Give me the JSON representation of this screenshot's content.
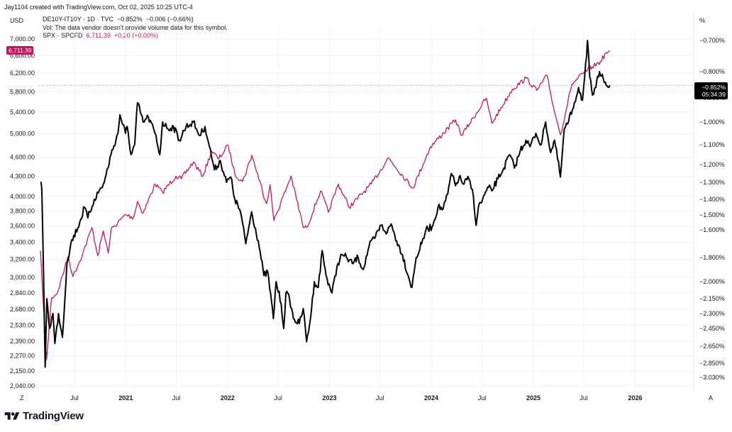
{
  "header": {
    "credit": "Jay1104 created with TradingView.com, Oct 02, 2025 10:25 UTC-4",
    "left_unit": "USD",
    "right_unit": "%"
  },
  "legend": {
    "line1_symbol": "DE10Y-IT10Y · 1D · TVC",
    "line1_value": "−0.852%",
    "line1_change": "−0.006 (−0.66%)",
    "line2": "Vol: The data vendor doesn't provide volume data for this symbol.",
    "line3_symbol": "SPX · SPCFD",
    "line3_value": "6,711.39",
    "line3_change": "+0.20 (+0.00%)"
  },
  "badges": {
    "spx_last": "6,711.39",
    "de_last": "−0.852%",
    "countdown": "05:34:39"
  },
  "corner_labels": {
    "bottom_left": "Z",
    "bottom_right": "A"
  },
  "footer": {
    "brand": "TradingView"
  },
  "colors": {
    "spx": "#c2185b",
    "spread": "#000000",
    "grid": "#f0f3fa",
    "text": "#131722"
  },
  "chart_data": {
    "type": "line",
    "x_ticks": [
      "Jul",
      "2021",
      "Jul",
      "2022",
      "Jul",
      "2023",
      "Jul",
      "2024",
      "Jul",
      "2025",
      "Jul",
      "2026"
    ],
    "left_axis": {
      "scale": "log",
      "ticks": [
        "7,000.00",
        "6,600.00",
        "6,200.00",
        "5,800.00",
        "5,400.00",
        "5,000.00",
        "4,600.00",
        "4,300.00",
        "4,000.00",
        "3,800.00",
        "3,600.00",
        "3,400.00",
        "3,200.00",
        "3,000.00",
        "2,840.00",
        "2,680.00",
        "2,530.00",
        "2,390.00",
        "2,270.00",
        "2,150.00",
        "2,040.00"
      ]
    },
    "right_axis": {
      "ticks": [
        "−0.700%",
        "−0.800%",
        "−0.900%",
        "−1.000%",
        "−1.100%",
        "−1.200%",
        "−1.300%",
        "−1.400%",
        "−1.500%",
        "−1.600%",
        "−1.800%",
        "−2.000%",
        "−2.150%",
        "−2.300%",
        "−2.450%",
        "−2.650%",
        "−2.850%",
        "−3.030%"
      ]
    },
    "last_value_line": -0.852,
    "series": [
      {
        "name": "SPX · SPCFD",
        "axis": "left",
        "color": "#c2185b",
        "points": [
          [
            "2020-03-01",
            3300
          ],
          [
            "2020-03-12",
            2700
          ],
          [
            "2020-03-23",
            2240
          ],
          [
            "2020-04-10",
            2790
          ],
          [
            "2020-05-01",
            2840
          ],
          [
            "2020-06-08",
            3230
          ],
          [
            "2020-06-26",
            3010
          ],
          [
            "2020-07-31",
            3270
          ],
          [
            "2020-09-02",
            3580
          ],
          [
            "2020-09-23",
            3240
          ],
          [
            "2020-10-12",
            3540
          ],
          [
            "2020-10-30",
            3270
          ],
          [
            "2020-11-09",
            3550
          ],
          [
            "2020-12-31",
            3750
          ],
          [
            "2021-01-29",
            3710
          ],
          [
            "2021-02-12",
            3930
          ],
          [
            "2021-03-04",
            3770
          ],
          [
            "2021-04-16",
            4180
          ],
          [
            "2021-05-12",
            4060
          ],
          [
            "2021-06-30",
            4300
          ],
          [
            "2021-07-19",
            4260
          ],
          [
            "2021-08-31",
            4520
          ],
          [
            "2021-10-04",
            4300
          ],
          [
            "2021-11-05",
            4700
          ],
          [
            "2021-11-30",
            4570
          ],
          [
            "2022-01-03",
            4800
          ],
          [
            "2022-01-27",
            4330
          ],
          [
            "2022-02-24",
            4220
          ],
          [
            "2022-03-29",
            4630
          ],
          [
            "2022-05-20",
            3900
          ],
          [
            "2022-06-02",
            4170
          ],
          [
            "2022-06-16",
            3670
          ],
          [
            "2022-08-16",
            4300
          ],
          [
            "2022-09-30",
            3580
          ],
          [
            "2022-10-12",
            3580
          ],
          [
            "2022-11-30",
            4080
          ],
          [
            "2022-12-28",
            3780
          ],
          [
            "2023-02-02",
            4180
          ],
          [
            "2023-03-13",
            3850
          ],
          [
            "2023-05-31",
            4180
          ],
          [
            "2023-07-31",
            4590
          ],
          [
            "2023-10-27",
            4120
          ],
          [
            "2023-12-29",
            4770
          ],
          [
            "2024-03-28",
            5250
          ],
          [
            "2024-04-19",
            4970
          ],
          [
            "2024-07-16",
            5670
          ],
          [
            "2024-08-05",
            5190
          ],
          [
            "2024-10-18",
            5860
          ],
          [
            "2024-12-06",
            6090
          ],
          [
            "2025-01-13",
            5830
          ],
          [
            "2025-02-19",
            6145
          ],
          [
            "2025-03-13",
            5520
          ],
          [
            "2025-04-08",
            4980
          ],
          [
            "2025-05-19",
            5960
          ],
          [
            "2025-06-30",
            6200
          ],
          [
            "2025-07-31",
            6340
          ],
          [
            "2025-08-29",
            6460
          ],
          [
            "2025-09-19",
            6660
          ],
          [
            "2025-10-02",
            6711.39
          ]
        ]
      },
      {
        "name": "DE10Y-IT10Y · 1D · TVC",
        "axis": "right",
        "color": "#000000",
        "points": [
          [
            "2020-03-01",
            -1.3
          ],
          [
            "2020-03-06",
            -1.34
          ],
          [
            "2020-03-12",
            -1.9
          ],
          [
            "2020-03-18",
            -2.9
          ],
          [
            "2020-03-24",
            -2.15
          ],
          [
            "2020-04-03",
            -2.45
          ],
          [
            "2020-04-15",
            -2.3
          ],
          [
            "2020-04-22",
            -2.62
          ],
          [
            "2020-05-05",
            -2.3
          ],
          [
            "2020-05-19",
            -2.55
          ],
          [
            "2020-06-04",
            -1.85
          ],
          [
            "2020-06-18",
            -1.7
          ],
          [
            "2020-07-20",
            -1.55
          ],
          [
            "2020-08-06",
            -1.45
          ],
          [
            "2020-08-18",
            -1.52
          ],
          [
            "2020-09-10",
            -1.4
          ],
          [
            "2020-10-16",
            -1.3
          ],
          [
            "2020-11-09",
            -1.15
          ],
          [
            "2020-12-04",
            -1.05
          ],
          [
            "2020-12-11",
            -0.97
          ],
          [
            "2020-12-31",
            -1.05
          ],
          [
            "2021-01-06",
            -1.02
          ],
          [
            "2021-01-20",
            -1.15
          ],
          [
            "2021-02-02",
            -1.1
          ],
          [
            "2021-02-12",
            -0.92
          ],
          [
            "2021-03-04",
            -1.0
          ],
          [
            "2021-03-23",
            -0.98
          ],
          [
            "2021-04-16",
            -1.05
          ],
          [
            "2021-05-03",
            -1.15
          ],
          [
            "2021-05-13",
            -1.0
          ],
          [
            "2021-06-01",
            -1.03
          ],
          [
            "2021-06-21",
            -1.02
          ],
          [
            "2021-07-12",
            -1.08
          ],
          [
            "2021-08-05",
            -1.02
          ],
          [
            "2021-08-31",
            -1.0
          ],
          [
            "2021-09-23",
            -1.06
          ],
          [
            "2021-10-12",
            -1.02
          ],
          [
            "2021-10-28",
            -1.11
          ],
          [
            "2021-11-15",
            -1.23
          ],
          [
            "2021-12-06",
            -1.18
          ],
          [
            "2021-12-28",
            -1.3
          ],
          [
            "2022-01-12",
            -1.27
          ],
          [
            "2022-01-27",
            -1.4
          ],
          [
            "2022-02-16",
            -1.48
          ],
          [
            "2022-03-07",
            -1.7
          ],
          [
            "2022-03-28",
            -1.48
          ],
          [
            "2022-04-21",
            -1.68
          ],
          [
            "2022-05-11",
            -1.95
          ],
          [
            "2022-05-25",
            -1.92
          ],
          [
            "2022-06-14",
            -2.35
          ],
          [
            "2022-06-24",
            -2.0
          ],
          [
            "2022-07-12",
            -2.2
          ],
          [
            "2022-07-21",
            -2.45
          ],
          [
            "2022-07-29",
            -2.1
          ],
          [
            "2022-08-11",
            -2.15
          ],
          [
            "2022-08-25",
            -2.35
          ],
          [
            "2022-09-15",
            -2.4
          ],
          [
            "2022-09-29",
            -2.25
          ],
          [
            "2022-10-11",
            -2.6
          ],
          [
            "2022-10-25",
            -2.35
          ],
          [
            "2022-11-08",
            -2.0
          ],
          [
            "2022-11-22",
            -2.05
          ],
          [
            "2022-12-06",
            -1.75
          ],
          [
            "2022-12-20",
            -1.95
          ],
          [
            "2023-01-10",
            -2.1
          ],
          [
            "2023-01-31",
            -1.85
          ],
          [
            "2023-02-15",
            -1.78
          ],
          [
            "2023-03-03",
            -1.8
          ],
          [
            "2023-03-24",
            -1.85
          ],
          [
            "2023-04-14",
            -1.8
          ],
          [
            "2023-05-02",
            -1.9
          ],
          [
            "2023-05-23",
            -1.72
          ],
          [
            "2023-06-15",
            -1.65
          ],
          [
            "2023-07-05",
            -1.57
          ],
          [
            "2023-07-27",
            -1.62
          ],
          [
            "2023-08-10",
            -1.56
          ],
          [
            "2023-08-30",
            -1.68
          ],
          [
            "2023-09-20",
            -1.78
          ],
          [
            "2023-10-10",
            -1.95
          ],
          [
            "2023-10-24",
            -2.05
          ],
          [
            "2023-11-08",
            -1.8
          ],
          [
            "2023-11-28",
            -1.7
          ],
          [
            "2023-12-13",
            -1.6
          ],
          [
            "2024-01-04",
            -1.58
          ],
          [
            "2024-01-25",
            -1.45
          ],
          [
            "2024-02-13",
            -1.46
          ],
          [
            "2024-02-29",
            -1.37
          ],
          [
            "2024-03-13",
            -1.25
          ],
          [
            "2024-03-28",
            -1.32
          ],
          [
            "2024-04-10",
            -1.27
          ],
          [
            "2024-04-24",
            -1.31
          ],
          [
            "2024-05-15",
            -1.28
          ],
          [
            "2024-05-31",
            -1.38
          ],
          [
            "2024-06-10",
            -1.57
          ],
          [
            "2024-06-18",
            -1.45
          ],
          [
            "2024-07-03",
            -1.4
          ],
          [
            "2024-07-24",
            -1.33
          ],
          [
            "2024-08-05",
            -1.35
          ],
          [
            "2024-08-27",
            -1.28
          ],
          [
            "2024-09-17",
            -1.22
          ],
          [
            "2024-10-08",
            -1.15
          ],
          [
            "2024-10-25",
            -1.22
          ],
          [
            "2024-11-15",
            -1.13
          ],
          [
            "2024-12-05",
            -1.08
          ],
          [
            "2024-12-20",
            -1.11
          ],
          [
            "2025-01-10",
            -1.05
          ],
          [
            "2025-01-29",
            -1.1
          ],
          [
            "2025-02-14",
            -1.0
          ],
          [
            "2025-03-04",
            -1.14
          ],
          [
            "2025-03-18",
            -1.08
          ],
          [
            "2025-04-08",
            -1.27
          ],
          [
            "2025-04-22",
            -1.03
          ],
          [
            "2025-05-07",
            -1.0
          ],
          [
            "2025-05-28",
            -0.92
          ],
          [
            "2025-06-12",
            -0.86
          ],
          [
            "2025-06-26",
            -0.91
          ],
          [
            "2025-07-11",
            -0.75
          ],
          [
            "2025-07-14",
            -0.7
          ],
          [
            "2025-07-22",
            -0.82
          ],
          [
            "2025-08-01",
            -0.89
          ],
          [
            "2025-08-13",
            -0.86
          ],
          [
            "2025-08-26",
            -0.8
          ],
          [
            "2025-09-05",
            -0.81
          ],
          [
            "2025-09-16",
            -0.84
          ],
          [
            "2025-09-26",
            -0.86
          ],
          [
            "2025-10-02",
            -0.852
          ]
        ]
      }
    ]
  }
}
